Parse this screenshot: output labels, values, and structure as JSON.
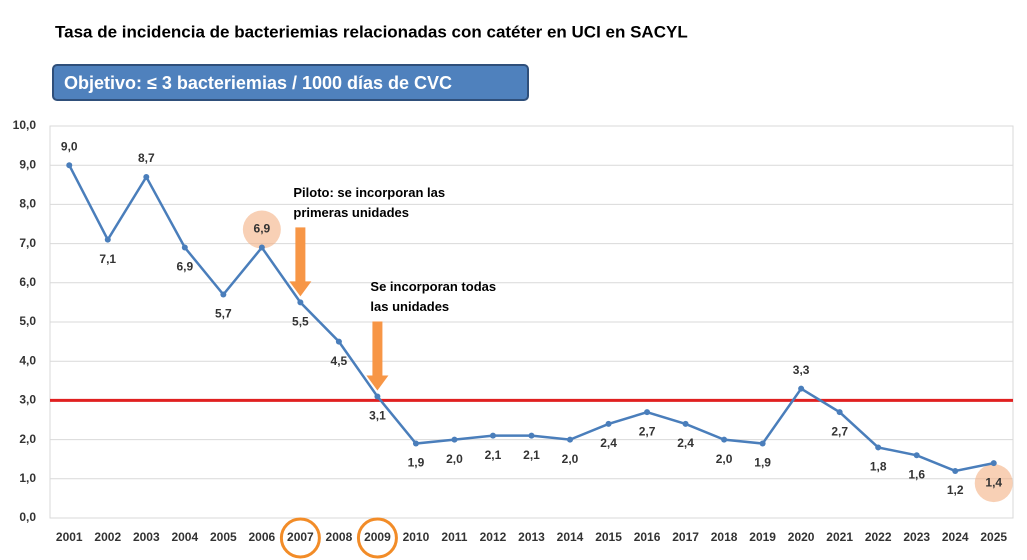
{
  "chart_data": {
    "type": "line",
    "title": "Tasa de incidencia de bacteriemias relacionadas con catéter en UCI en SACYL",
    "objective": "Objetivo: ≤ 3 bacteriemias / 1000 días de CVC",
    "categories": [
      "2001",
      "2002",
      "2003",
      "2004",
      "2005",
      "2006",
      "2007",
      "2008",
      "2009",
      "2010",
      "2011",
      "2012",
      "2013",
      "2014",
      "2015",
      "2016",
      "2017",
      "2018",
      "2019",
      "2020",
      "2021",
      "2022",
      "2023",
      "2024",
      "2025"
    ],
    "series": [
      {
        "name": "Tasa",
        "color": "#4a7ebb",
        "values": [
          9.0,
          7.1,
          8.7,
          6.9,
          5.7,
          6.9,
          5.5,
          4.5,
          3.1,
          1.9,
          2.0,
          2.1,
          2.1,
          2.0,
          2.4,
          2.7,
          2.4,
          2.0,
          1.9,
          3.3,
          2.7,
          1.8,
          1.6,
          1.2,
          1.4
        ],
        "value_labels": [
          "9,0",
          "7,1",
          "8,7",
          "6,9",
          "5,7",
          "6,9",
          "5,5",
          "4,5",
          "3,1",
          "1,9",
          "2,0",
          "2,1",
          "2,1",
          "2,0",
          "2,4",
          "2,7",
          "2,4",
          "2,0",
          "1,9",
          "3,3",
          "2,7",
          "1,8",
          "1,6",
          "1,2",
          "1,4"
        ]
      }
    ],
    "target": {
      "value": 3,
      "color": "#e02020"
    },
    "ylim": [
      0,
      10
    ],
    "yticks": [
      {
        "value": 0,
        "label": "0,0"
      },
      {
        "value": 1,
        "label": "1,0"
      },
      {
        "value": 2,
        "label": "2,0"
      },
      {
        "value": 3,
        "label": "3,0"
      },
      {
        "value": 4,
        "label": "4,0"
      },
      {
        "value": 5,
        "label": "5,0"
      },
      {
        "value": 6,
        "label": "6,0"
      },
      {
        "value": 7,
        "label": "7,0"
      },
      {
        "value": 8,
        "label": "8,0"
      },
      {
        "value": 9,
        "label": "9,0"
      },
      {
        "value": 10,
        "label": "10,0"
      }
    ],
    "grid": true,
    "annotations": [
      {
        "lines": [
          "Piloto: se incorporan las",
          "primeras unidades"
        ],
        "category_index": 6
      },
      {
        "lines": [
          "Se incorporan todas",
          "las unidades"
        ],
        "category_index": 8
      }
    ],
    "highlight_points": [
      5,
      24
    ],
    "highlight_categories": [
      6,
      8
    ]
  }
}
